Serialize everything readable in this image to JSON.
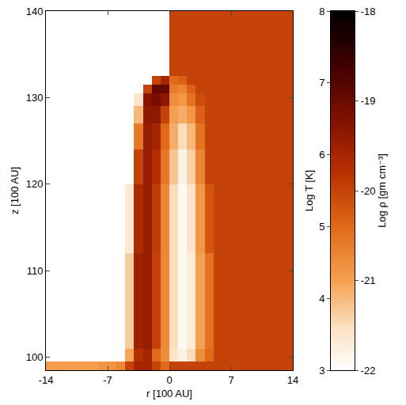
{
  "chart_data": {
    "type": "heatmap",
    "x_label": "r [100 AU]",
    "y_label": "z [100 AU]",
    "xlim": [
      -14,
      14
    ],
    "ylim": [
      98.5,
      140
    ],
    "xticks": [
      -14,
      -7,
      0,
      7,
      14
    ],
    "yticks": [
      100,
      110,
      120,
      130,
      140
    ],
    "y": [
      98.5,
      99.5,
      101,
      104,
      108,
      112,
      116,
      120,
      124,
      127,
      129,
      130.5,
      131.5,
      132.5,
      140
    ],
    "panels": [
      {
        "colorbar_title": "Log T [K]",
        "x": [
          -14,
          -12,
          -10,
          -8,
          -6,
          -5,
          -4,
          -3,
          -2,
          -1,
          0
        ],
        "cells": [
          [
            4.3,
            4.3,
            4.3,
            4.4,
            4.6,
            5.5,
            6,
            6,
            5.5,
            5
          ],
          [
            3,
            3,
            3,
            3,
            3,
            4.2,
            5.8,
            6,
            5,
            4.5
          ],
          [
            3,
            3,
            3,
            3,
            3,
            3.8,
            6.1,
            6.2,
            5.5,
            4.6
          ],
          [
            3,
            3,
            3,
            3,
            3,
            3.8,
            6.1,
            6.2,
            5.5,
            4.6
          ],
          [
            3,
            3,
            3,
            3,
            3,
            3.8,
            6.1,
            6.2,
            5.5,
            4.6
          ],
          [
            3,
            3,
            3,
            3,
            3,
            3.4,
            5.9,
            6.2,
            5.6,
            4.6
          ],
          [
            3,
            3,
            3,
            3,
            3,
            3.4,
            5.9,
            6.2,
            5.6,
            4.6
          ],
          [
            3,
            3,
            3,
            3,
            3,
            3,
            5.5,
            6.2,
            5.8,
            4.8
          ],
          [
            3,
            3,
            3,
            3,
            3,
            3,
            4.8,
            6.2,
            6,
            5
          ],
          [
            3,
            3,
            3,
            3,
            3,
            3,
            4,
            6.3,
            6.3,
            5.5
          ],
          [
            3,
            3,
            3,
            3,
            3,
            3,
            3.5,
            6.4,
            6.6,
            6.3
          ],
          [
            3,
            3,
            3,
            3,
            3,
            3,
            3,
            5.5,
            6.8,
            6.8
          ],
          [
            3,
            3,
            3,
            3,
            3,
            3,
            3,
            3,
            5.5,
            6
          ],
          [
            3,
            3,
            3,
            3,
            3,
            3,
            3,
            3,
            3,
            3
          ]
        ],
        "colorbar_range": [
          3,
          8
        ],
        "colorbar_ticks": [
          3,
          4,
          5,
          6,
          7,
          8
        ]
      },
      {
        "colorbar_title": "Log ρ [gm cm⁻³]",
        "x": [
          0,
          1,
          2,
          3,
          4,
          5,
          6,
          8,
          10,
          12,
          14
        ],
        "cells": [
          [
            -20,
            -20,
            -20,
            -20,
            -20,
            -20,
            -20,
            -20,
            -20,
            -20
          ],
          [
            -21.6,
            -21.8,
            -21.5,
            -20.8,
            -20.4,
            -20,
            -20,
            -20,
            -20,
            -20
          ],
          [
            -21.5,
            -21.9,
            -21.7,
            -21,
            -20.5,
            -20,
            -20,
            -20,
            -20,
            -20
          ],
          [
            -21.5,
            -21.9,
            -21.7,
            -21,
            -20.5,
            -20,
            -20,
            -20,
            -20,
            -20
          ],
          [
            -21.5,
            -21.9,
            -21.7,
            -21,
            -20.5,
            -20,
            -20,
            -20,
            -20,
            -20
          ],
          [
            -21.5,
            -21.9,
            -21.6,
            -20.9,
            -20.2,
            -20,
            -20,
            -20,
            -20,
            -20
          ],
          [
            -21.5,
            -21.9,
            -21.6,
            -20.9,
            -20.2,
            -20,
            -20,
            -20,
            -20,
            -20
          ],
          [
            -21.3,
            -21.8,
            -21.4,
            -20.7,
            -20,
            -20,
            -20,
            -20,
            -20,
            -20
          ],
          [
            -21.1,
            -21.5,
            -21.2,
            -20.5,
            -20,
            -20,
            -20,
            -20,
            -20,
            -20
          ],
          [
            -21,
            -21.1,
            -20.9,
            -20.3,
            -20,
            -20,
            -20,
            -20,
            -20,
            -20
          ],
          [
            -20.8,
            -20.9,
            -20.5,
            -20.1,
            -20,
            -20,
            -20,
            -20,
            -20,
            -20
          ],
          [
            -20.6,
            -20.7,
            -20.3,
            -20,
            -20,
            -20,
            -20,
            -20,
            -20,
            -20
          ],
          [
            -20.4,
            -20.3,
            -20,
            -20,
            -20,
            -20,
            -20,
            -20,
            -20,
            -20
          ],
          [
            -20,
            -20,
            -20,
            -20,
            -20,
            -20,
            -20,
            -20,
            -20,
            -20
          ]
        ],
        "colorbar_range": [
          -22,
          -18
        ],
        "colorbar_ticks": [
          -18,
          -19,
          -20,
          -21,
          -22
        ]
      }
    ]
  }
}
